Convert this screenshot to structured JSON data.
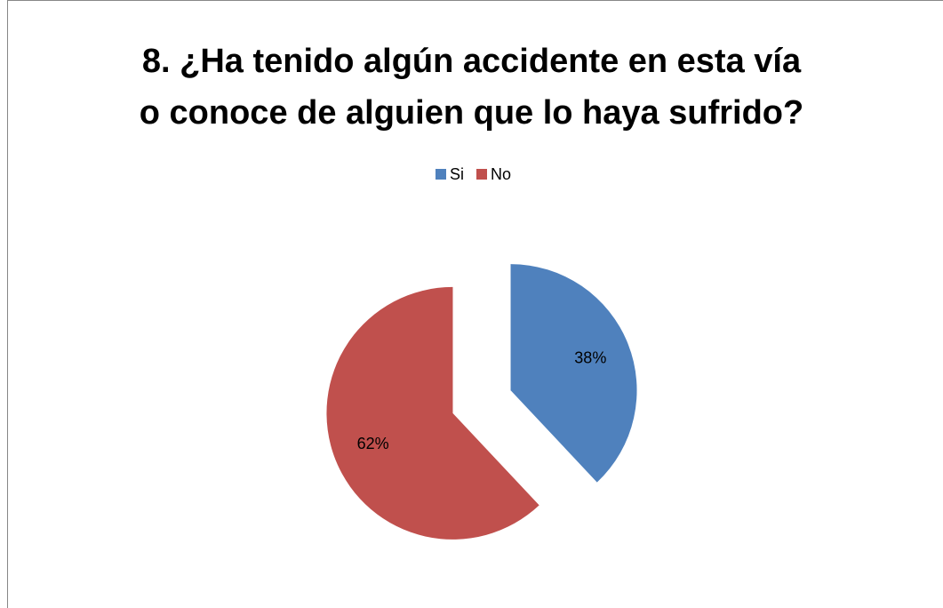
{
  "chart_data": {
    "type": "pie",
    "title": "8. ¿Ha tenido algún accidente en esta vía\no conoce de alguien que lo haya sufrido?",
    "categories": [
      "Si",
      "No"
    ],
    "values": [
      38,
      62
    ],
    "value_labels": [
      "38%",
      "62%"
    ],
    "colors": [
      "#4f81bd",
      "#c0504d"
    ],
    "legend": "top"
  }
}
